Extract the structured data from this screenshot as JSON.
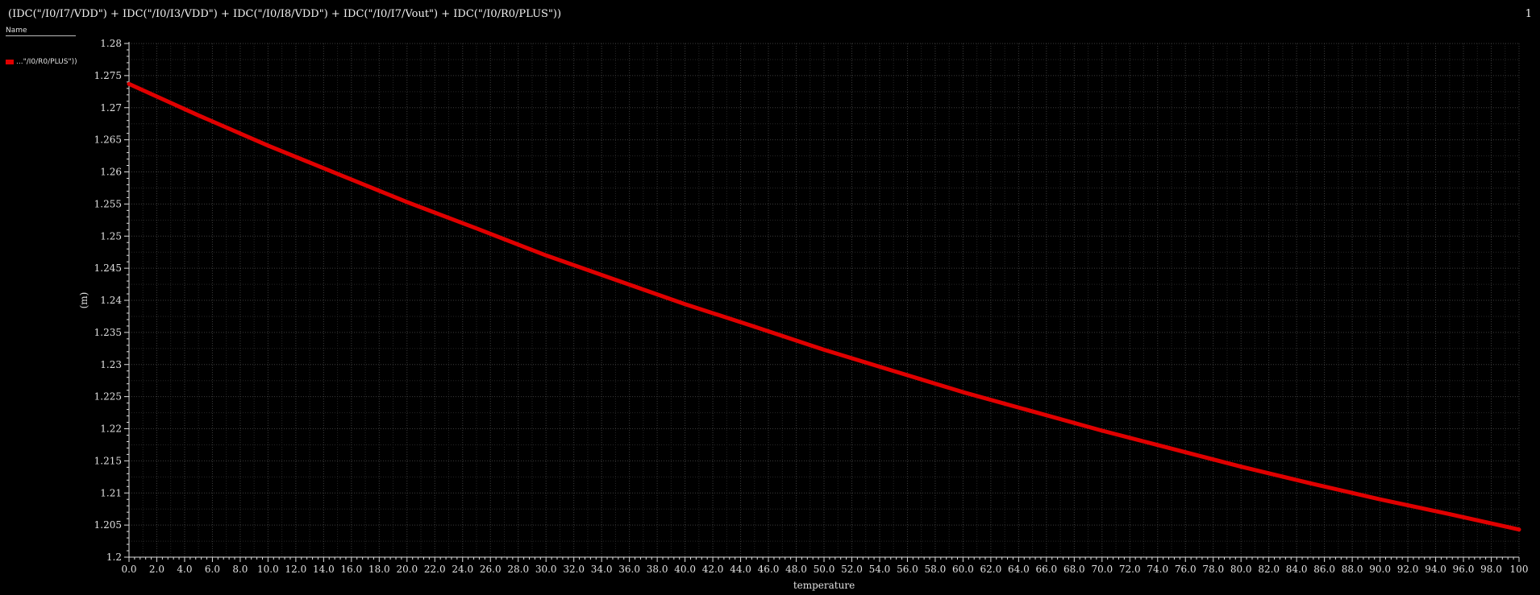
{
  "header": {
    "title": "(IDC(\"/I0/I7/VDD\") + IDC(\"/I0/I3/VDD\") + IDC(\"/I0/I8/VDD\") + IDC(\"/I0/I7/Vout\") + IDC(\"/I0/R0/PLUS\"))",
    "page_number": "1"
  },
  "legend": {
    "header": "Name",
    "items": [
      {
        "label": "...\"/I0/R0/PLUS\"))",
        "color": "#e00000"
      }
    ]
  },
  "colors": {
    "background": "#000000",
    "series": "#e00000",
    "grid": "#3a3a3a",
    "axis": "#e0e0e0"
  },
  "chart_data": {
    "type": "line",
    "title": "(IDC(\"/I0/I7/VDD\") + IDC(\"/I0/I3/VDD\") + IDC(\"/I0/I8/VDD\") + IDC(\"/I0/I7/Vout\") + IDC(\"/I0/R0/PLUS\"))",
    "xlabel": "temperature",
    "ylabel": "(m)",
    "xlim": [
      0,
      100
    ],
    "ylim": [
      1.2,
      1.28
    ],
    "x_ticks": [
      0,
      2,
      4,
      6,
      8,
      10,
      12,
      14,
      16,
      18,
      20,
      22,
      24,
      26,
      28,
      30,
      32,
      34,
      36,
      38,
      40,
      42,
      44,
      46,
      48,
      50,
      52,
      54,
      56,
      58,
      60,
      62,
      64,
      66,
      68,
      70,
      72,
      74,
      76,
      78,
      80,
      82,
      84,
      86,
      88,
      90,
      92,
      94,
      96,
      98,
      100
    ],
    "x_tick_labels": [
      "0.0",
      "2.0",
      "4.0",
      "6.0",
      "8.0",
      "10.0",
      "12.0",
      "14.0",
      "16.0",
      "18.0",
      "20.0",
      "22.0",
      "24.0",
      "26.0",
      "28.0",
      "30.0",
      "32.0",
      "34.0",
      "36.0",
      "38.0",
      "40.0",
      "42.0",
      "44.0",
      "46.0",
      "48.0",
      "50.0",
      "52.0",
      "54.0",
      "56.0",
      "58.0",
      "60.0",
      "62.0",
      "64.0",
      "66.0",
      "68.0",
      "70.0",
      "72.0",
      "74.0",
      "76.0",
      "78.0",
      "80.0",
      "82.0",
      "84.0",
      "86.0",
      "88.0",
      "90.0",
      "92.0",
      "94.0",
      "96.0",
      "98.0",
      "100"
    ],
    "y_ticks": [
      1.2,
      1.205,
      1.21,
      1.215,
      1.22,
      1.225,
      1.23,
      1.235,
      1.24,
      1.245,
      1.25,
      1.255,
      1.26,
      1.265,
      1.27,
      1.275,
      1.28
    ],
    "y_tick_labels": [
      "1.2",
      "1.205",
      "1.21",
      "1.215",
      "1.22",
      "1.225",
      "1.23",
      "1.235",
      "1.24",
      "1.245",
      "1.25",
      "1.255",
      "1.26",
      "1.265",
      "1.27",
      "1.275",
      "1.28"
    ],
    "grid": true,
    "legend_position": "top-left",
    "series": [
      {
        "name": "...\"/I0/R0/PLUS\"))",
        "color": "#e00000",
        "x": [
          0,
          5,
          10,
          15,
          20,
          25,
          30,
          35,
          40,
          45,
          50,
          55,
          60,
          65,
          70,
          75,
          80,
          85,
          90,
          95,
          100
        ],
        "y": [
          1.2737,
          1.2688,
          1.2641,
          1.2597,
          1.2553,
          1.2512,
          1.247,
          1.2432,
          1.2394,
          1.2359,
          1.2323,
          1.229,
          1.2257,
          1.2227,
          1.2197,
          1.2169,
          1.2141,
          1.2115,
          1.209,
          1.2067,
          1.2043
        ]
      }
    ]
  }
}
